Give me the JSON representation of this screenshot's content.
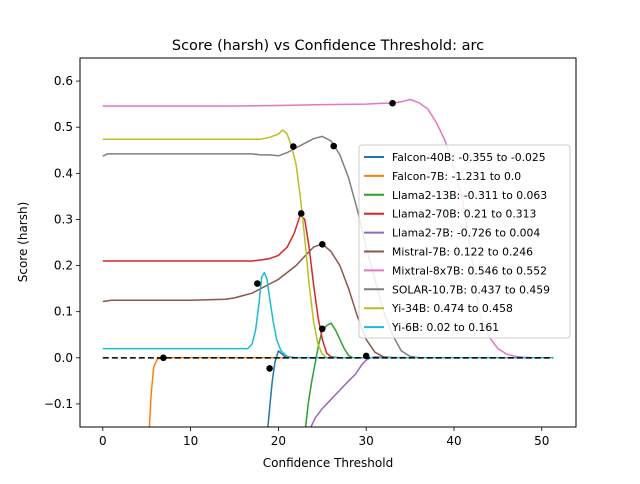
{
  "chart_data": {
    "type": "line",
    "title": "Score (harsh) vs Confidence Threshold: arc",
    "xlabel": "Confidence Threshold",
    "ylabel": "Score (harsh)",
    "xlim": [
      -2.6,
      53.9
    ],
    "ylim": [
      -0.15,
      0.65
    ],
    "xticks": [
      0,
      10,
      20,
      30,
      40,
      50
    ],
    "yticks": [
      -0.1,
      0.0,
      0.1,
      0.2,
      0.3,
      0.4,
      0.5,
      0.6
    ],
    "ytick_labels": [
      "−0.1",
      "0.0",
      "0.1",
      "0.2",
      "0.3",
      "0.4",
      "0.5",
      "0.6"
    ],
    "grid": false,
    "legend_position": "center-right",
    "baseline": {
      "y": 0,
      "style": "dashed",
      "color": "#000000",
      "x": [
        0,
        51.3
      ]
    },
    "series": [
      {
        "name": "Falcon-40B: -0.355 to -0.025",
        "color": "#1f77b4",
        "points": [
          [
            18.8,
            -0.15
          ],
          [
            19.0,
            -0.11
          ],
          [
            19.3,
            -0.05
          ],
          [
            19.6,
            -0.01
          ],
          [
            20.0,
            0.015
          ],
          [
            20.3,
            0.01
          ],
          [
            20.8,
            0.002
          ],
          [
            21.5,
            0.0
          ],
          [
            30,
            0.0
          ],
          [
            40,
            0.0
          ],
          [
            51.3,
            0.0
          ]
        ],
        "marker": [
          19.0,
          -0.023
        ]
      },
      {
        "name": "Falcon-7B: -1.231 to 0.0",
        "color": "#ff7f0e",
        "points": [
          [
            5.3,
            -0.15
          ],
          [
            5.5,
            -0.08
          ],
          [
            5.8,
            -0.02
          ],
          [
            6.2,
            -0.003
          ],
          [
            6.8,
            0.0
          ],
          [
            10,
            0.0
          ],
          [
            20,
            0.0
          ],
          [
            30,
            0.0
          ],
          [
            40,
            0.0
          ],
          [
            51.3,
            0.0
          ]
        ],
        "marker": [
          6.9,
          0.0
        ]
      },
      {
        "name": "Llama2-13B: -0.311 to 0.063",
        "color": "#2ca02c",
        "points": [
          [
            23.1,
            -0.15
          ],
          [
            23.4,
            -0.1
          ],
          [
            23.8,
            -0.05
          ],
          [
            24.2,
            -0.01
          ],
          [
            24.6,
            0.03
          ],
          [
            25.0,
            0.06
          ],
          [
            25.5,
            0.07
          ],
          [
            26.0,
            0.075
          ],
          [
            26.5,
            0.06
          ],
          [
            27.0,
            0.04
          ],
          [
            27.5,
            0.02
          ],
          [
            28.0,
            0.005
          ],
          [
            28.5,
            0.0
          ],
          [
            30,
            0.0
          ],
          [
            40,
            0.0
          ],
          [
            51.3,
            0.0
          ]
        ],
        "marker": [
          25.0,
          0.063
        ]
      },
      {
        "name": "Llama2-70B: 0.21 to 0.313",
        "color": "#d62728",
        "points": [
          [
            0,
            0.21
          ],
          [
            5,
            0.21
          ],
          [
            10,
            0.21
          ],
          [
            15,
            0.21
          ],
          [
            17,
            0.21
          ],
          [
            18,
            0.212
          ],
          [
            19,
            0.215
          ],
          [
            20,
            0.222
          ],
          [
            21,
            0.24
          ],
          [
            21.8,
            0.27
          ],
          [
            22.5,
            0.31
          ],
          [
            23.0,
            0.3
          ],
          [
            23.5,
            0.24
          ],
          [
            24.0,
            0.16
          ],
          [
            24.5,
            0.09
          ],
          [
            25.0,
            0.04
          ],
          [
            25.5,
            0.01
          ],
          [
            26.0,
            0.002
          ],
          [
            27,
            0.0
          ],
          [
            30,
            0.0
          ],
          [
            40,
            0.0
          ],
          [
            51.3,
            0.0
          ]
        ],
        "marker": [
          22.6,
          0.313
        ]
      },
      {
        "name": "Llama2-7B: -0.726 to 0.004",
        "color": "#9467bd",
        "points": [
          [
            23.7,
            -0.15
          ],
          [
            24.2,
            -0.13
          ],
          [
            25.0,
            -0.11
          ],
          [
            26.0,
            -0.09
          ],
          [
            27.0,
            -0.07
          ],
          [
            28.0,
            -0.05
          ],
          [
            28.8,
            -0.035
          ],
          [
            29.5,
            -0.015
          ],
          [
            30.0,
            -0.005
          ],
          [
            30.5,
            0.0
          ],
          [
            31,
            0.002
          ],
          [
            32,
            0.001
          ],
          [
            35,
            0.0
          ],
          [
            40,
            0.0
          ],
          [
            51.3,
            0.0
          ]
        ],
        "marker": [
          30.0,
          0.004
        ]
      },
      {
        "name": "Mistral-7B: 0.122 to 0.246",
        "color": "#8c564b",
        "points": [
          [
            0,
            0.122
          ],
          [
            1,
            0.125
          ],
          [
            5,
            0.125
          ],
          [
            10,
            0.125
          ],
          [
            14,
            0.127
          ],
          [
            15,
            0.13
          ],
          [
            16,
            0.135
          ],
          [
            17,
            0.14
          ],
          [
            18,
            0.15
          ],
          [
            19,
            0.16
          ],
          [
            20,
            0.17
          ],
          [
            21,
            0.185
          ],
          [
            22,
            0.2
          ],
          [
            23,
            0.22
          ],
          [
            24,
            0.24
          ],
          [
            25,
            0.247
          ],
          [
            26,
            0.23
          ],
          [
            27,
            0.2
          ],
          [
            28,
            0.15
          ],
          [
            29,
            0.09
          ],
          [
            30,
            0.04
          ],
          [
            31,
            0.012
          ],
          [
            32,
            0.002
          ],
          [
            33,
            0.0
          ],
          [
            40,
            0.0
          ],
          [
            51.3,
            0.0
          ]
        ],
        "marker": [
          25.0,
          0.246
        ]
      },
      {
        "name": "Mixtral-8x7B: 0.546 to 0.552",
        "color": "#e377c2",
        "points": [
          [
            0,
            0.546
          ],
          [
            5,
            0.546
          ],
          [
            10,
            0.546
          ],
          [
            15,
            0.546
          ],
          [
            20,
            0.547
          ],
          [
            25,
            0.549
          ],
          [
            30,
            0.55
          ],
          [
            32,
            0.552
          ],
          [
            33,
            0.552
          ],
          [
            34,
            0.555
          ],
          [
            35,
            0.56
          ],
          [
            36,
            0.553
          ],
          [
            37,
            0.54
          ],
          [
            38,
            0.51
          ],
          [
            39,
            0.47
          ],
          [
            40,
            0.41
          ],
          [
            41,
            0.34
          ],
          [
            41.5,
            0.28
          ],
          [
            42,
            0.22
          ],
          [
            42.5,
            0.15
          ],
          [
            43,
            0.09
          ],
          [
            44,
            0.045
          ],
          [
            45,
            0.02
          ],
          [
            46,
            0.008
          ],
          [
            47,
            0.003
          ],
          [
            48,
            0.001
          ],
          [
            49,
            0.0
          ],
          [
            51.3,
            0.0
          ]
        ],
        "marker": [
          33.0,
          0.552
        ]
      },
      {
        "name": "SOLAR-10.7B: 0.437 to 0.459",
        "color": "#7f7f7f",
        "points": [
          [
            0,
            0.437
          ],
          [
            0.5,
            0.442
          ],
          [
            5,
            0.442
          ],
          [
            10,
            0.442
          ],
          [
            15,
            0.442
          ],
          [
            17,
            0.442
          ],
          [
            18,
            0.44
          ],
          [
            19,
            0.44
          ],
          [
            20,
            0.438
          ],
          [
            21,
            0.445
          ],
          [
            22,
            0.455
          ],
          [
            23,
            0.465
          ],
          [
            24,
            0.475
          ],
          [
            25,
            0.48
          ],
          [
            26,
            0.47
          ],
          [
            27,
            0.44
          ],
          [
            28,
            0.39
          ],
          [
            29,
            0.32
          ],
          [
            30,
            0.24
          ],
          [
            31,
            0.17
          ],
          [
            32,
            0.1
          ],
          [
            33,
            0.05
          ],
          [
            34,
            0.015
          ],
          [
            35,
            0.003
          ],
          [
            36,
            0.0
          ],
          [
            40,
            0.0
          ],
          [
            51.3,
            0.0
          ]
        ],
        "marker": [
          26.3,
          0.459
        ]
      },
      {
        "name": "Yi-34B: 0.474 to 0.458",
        "color": "#bcbd22",
        "points": [
          [
            0,
            0.474
          ],
          [
            5,
            0.474
          ],
          [
            10,
            0.474
          ],
          [
            15,
            0.474
          ],
          [
            18,
            0.474
          ],
          [
            19,
            0.478
          ],
          [
            20,
            0.485
          ],
          [
            20.5,
            0.494
          ],
          [
            21,
            0.485
          ],
          [
            21.5,
            0.458
          ],
          [
            22,
            0.42
          ],
          [
            22.5,
            0.35
          ],
          [
            23,
            0.26
          ],
          [
            23.5,
            0.16
          ],
          [
            24,
            0.08
          ],
          [
            24.5,
            0.03
          ],
          [
            25,
            0.008
          ],
          [
            25.5,
            0.0
          ],
          [
            30,
            0.0
          ],
          [
            40,
            0.0
          ],
          [
            51.3,
            0.0
          ]
        ],
        "marker": [
          21.7,
          0.458
        ]
      },
      {
        "name": "Yi-6B: 0.02 to 0.161",
        "color": "#17becf",
        "points": [
          [
            0,
            0.02
          ],
          [
            5,
            0.02
          ],
          [
            10,
            0.02
          ],
          [
            15,
            0.02
          ],
          [
            16.5,
            0.02
          ],
          [
            17,
            0.03
          ],
          [
            17.4,
            0.06
          ],
          [
            17.8,
            0.12
          ],
          [
            18.1,
            0.175
          ],
          [
            18.4,
            0.185
          ],
          [
            18.7,
            0.17
          ],
          [
            19.0,
            0.13
          ],
          [
            19.4,
            0.08
          ],
          [
            19.8,
            0.04
          ],
          [
            20.3,
            0.015
          ],
          [
            21,
            0.003
          ],
          [
            22,
            0.0
          ],
          [
            30,
            0.0
          ],
          [
            40,
            0.0
          ],
          [
            51.3,
            0.0
          ]
        ],
        "marker": [
          17.6,
          0.161
        ]
      }
    ]
  }
}
